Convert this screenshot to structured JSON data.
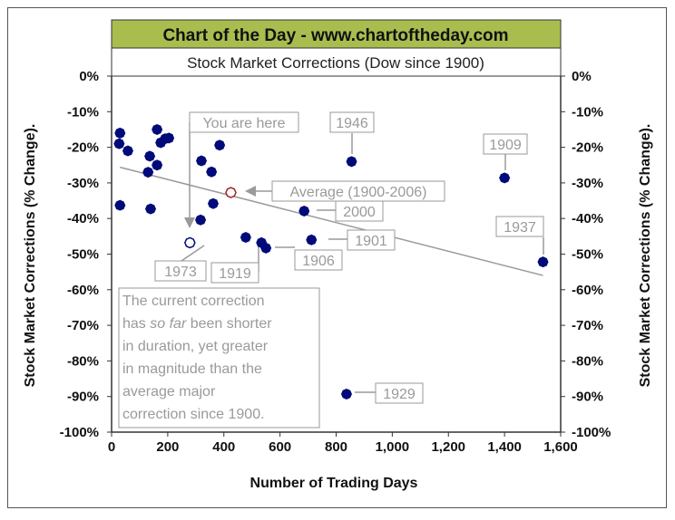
{
  "chart_data": {
    "type": "scatter",
    "header": "Chart of the Day - www.chartoftheday.com",
    "title": "Stock Market Corrections (Dow since 1900)",
    "xlabel": "Number of Trading Days",
    "ylabel": "Stock Market Corrections (% Change).",
    "ylabel_right": "Stock Market Corrections (% Change).",
    "xlim": [
      0,
      1600
    ],
    "ylim": [
      -100,
      0
    ],
    "xticks": [
      0,
      200,
      400,
      600,
      800,
      1000,
      1200,
      1400,
      1600
    ],
    "xtick_labels": [
      "0",
      "200",
      "400",
      "600",
      "800",
      "1,000",
      "1,200",
      "1,400",
      "1,600"
    ],
    "yticks": [
      0,
      -10,
      -20,
      -30,
      -40,
      -50,
      -60,
      -70,
      -80,
      -90,
      -100
    ],
    "ytick_labels": [
      "0%",
      "-10%",
      "-20%",
      "-30%",
      "-40%",
      "-50%",
      "-60%",
      "-70%",
      "-80%",
      "-90%",
      "-100%"
    ],
    "grid": false,
    "colors": {
      "header_bg": "#a9bd4f",
      "point": "#000a78",
      "average": "#a02020",
      "annotation": "#9a9a9a",
      "trend": "#9a9a9a"
    },
    "series": [
      {
        "name": "Corrections",
        "points": [
          [
            30,
            -16
          ],
          [
            27,
            -19
          ],
          [
            58,
            -21
          ],
          [
            162,
            -15
          ],
          [
            175,
            -18.7
          ],
          [
            191,
            -17.6
          ],
          [
            204,
            -17.4
          ],
          [
            136,
            -22.5
          ],
          [
            162,
            -25
          ],
          [
            130,
            -27
          ],
          [
            30,
            -36.3
          ],
          [
            139,
            -37.3
          ],
          [
            320,
            -23.8
          ],
          [
            385,
            -19.4
          ],
          [
            356,
            -26.9
          ],
          [
            362,
            -35.8
          ],
          [
            317,
            -40.4
          ],
          [
            478,
            -45.3
          ],
          [
            534,
            -46.8
          ],
          [
            550,
            -48.3
          ],
          [
            712,
            -46
          ],
          [
            686,
            -37.9
          ],
          [
            855,
            -24
          ],
          [
            1400,
            -28.6
          ],
          [
            1537,
            -52.2
          ],
          [
            837,
            -89.3
          ]
        ]
      },
      {
        "name": "You are here",
        "points": [
          [
            279,
            -46.8
          ]
        ]
      },
      {
        "name": "Average (1900-2006)",
        "points": [
          [
            425,
            -32.7
          ]
        ]
      }
    ],
    "trendline": [
      [
        30,
        -25.6
      ],
      [
        1537,
        -56
      ]
    ],
    "annotations": {
      "you_are_here": "You are here",
      "y1946": "1946",
      "y1909": "1909",
      "average": "Average (1900-2006)",
      "y2000": "2000",
      "y1901": "1901",
      "y1937": "1937",
      "y1973": "1973",
      "y1919": "1919",
      "y1906": "1906",
      "y1929": "1929"
    },
    "note": {
      "line1": "The current correction",
      "line2a": "has ",
      "line2b": "so far",
      "line2c": " been shorter",
      "line3": "in duration, yet greater",
      "line4": "in magnitude than the",
      "line5": "average major",
      "line6": "correction since 1900."
    }
  }
}
